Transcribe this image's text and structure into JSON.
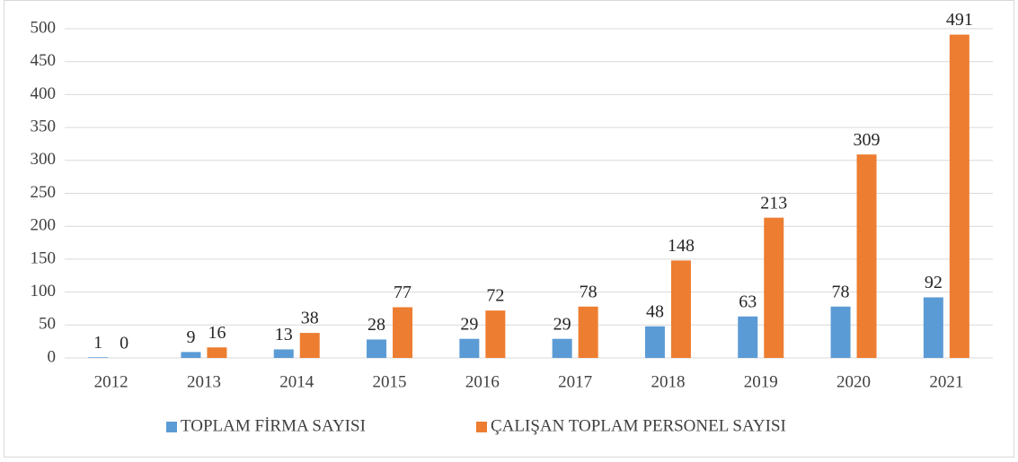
{
  "chart_data": {
    "type": "bar",
    "categories": [
      "2012",
      "2013",
      "2014",
      "2015",
      "2016",
      "2017",
      "2018",
      "2019",
      "2020",
      "2021"
    ],
    "series": [
      {
        "name": "TOPLAM FİRMA SAYISI",
        "color": "#5b9bd5",
        "values": [
          1,
          9,
          13,
          28,
          29,
          29,
          48,
          63,
          78,
          92
        ]
      },
      {
        "name": "ÇALIŞAN TOPLAM PERSONEL SAYISI",
        "color": "#ed7d31",
        "values": [
          0,
          16,
          38,
          77,
          72,
          78,
          148,
          213,
          309,
          491
        ]
      }
    ],
    "ylim": [
      0,
      500
    ],
    "yticks": [
      0,
      50,
      100,
      150,
      200,
      250,
      300,
      350,
      400,
      450,
      500
    ],
    "grid": true,
    "legend": "bottom"
  }
}
